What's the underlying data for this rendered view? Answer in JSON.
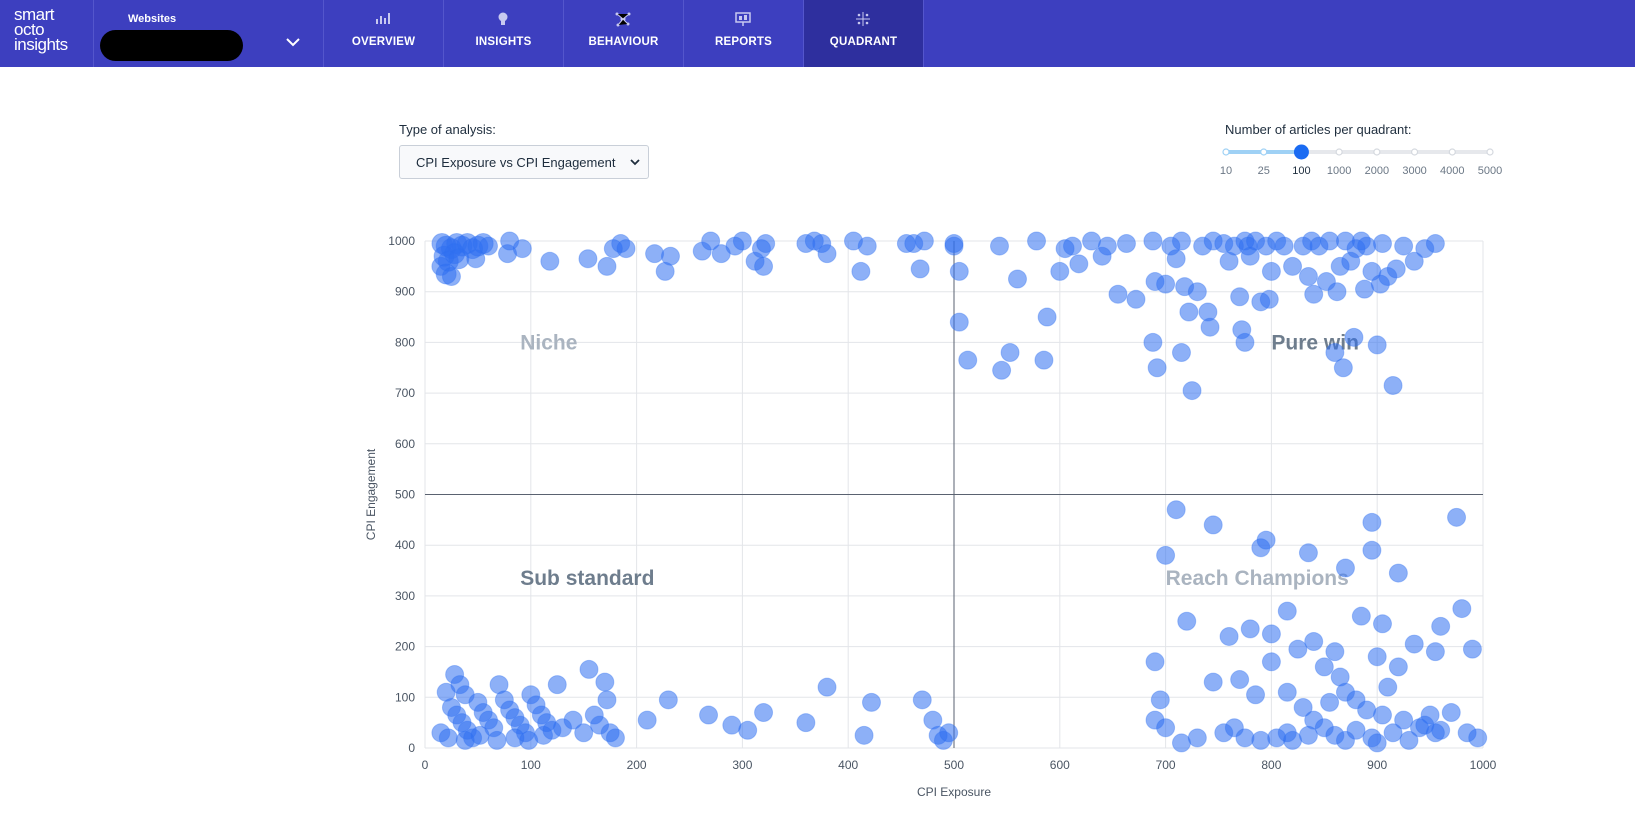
{
  "logo": {
    "line1": "smart",
    "line2": "octo",
    "line3": "insights"
  },
  "header": {
    "websites_label": "Websites",
    "nav": [
      {
        "label": "OVERVIEW",
        "icon": "bar-chart-icon"
      },
      {
        "label": "INSIGHTS",
        "icon": "lightbulb-icon"
      },
      {
        "label": "BEHAVIOUR",
        "icon": "network-icon"
      },
      {
        "label": "REPORTS",
        "icon": "presentation-icon"
      },
      {
        "label": "QUADRANT",
        "icon": "quadrant-icon",
        "active": true
      }
    ]
  },
  "controls": {
    "analysis_label": "Type of analysis:",
    "analysis_value": "CPI Exposure vs CPI Engagement",
    "slider_label": "Number of articles per quadrant:",
    "slider_options": [
      "10",
      "25",
      "100",
      "1000",
      "2000",
      "3000",
      "4000",
      "5000"
    ],
    "slider_selected": "100"
  },
  "colors": {
    "header": "#3d3fbf",
    "header_active": "#2e2f9e",
    "bubble": "#2f6ff0",
    "slider_fill": "#9fd1f5",
    "slider_knob": "#1a6bf2"
  },
  "chart_data": {
    "type": "scatter",
    "xlabel": "CPI Exposure",
    "ylabel": "CPI Engagement",
    "xlim": [
      0,
      1000
    ],
    "ylim": [
      0,
      1000
    ],
    "xticks": [
      "0",
      "100",
      "200",
      "300",
      "400",
      "500",
      "600",
      "700",
      "800",
      "900",
      "1000"
    ],
    "yticks": [
      "0",
      "100",
      "200",
      "300",
      "400",
      "500",
      "600",
      "700",
      "800",
      "900",
      "1000"
    ],
    "grid": true,
    "divider": {
      "x": 500,
      "y": 500
    },
    "quadrant_labels": [
      {
        "text": "Niche",
        "x": 90,
        "y": 800,
        "color": "#aab4c0"
      },
      {
        "text": "Pure win",
        "x": 800,
        "y": 800,
        "color": "#6e7d8d"
      },
      {
        "text": "Sub standard",
        "x": 90,
        "y": 335,
        "color": "#6e7d8d"
      },
      {
        "text": "Reach Champions",
        "x": 700,
        "y": 335,
        "color": "#aab4c0"
      }
    ],
    "points": [
      [
        16,
        995,
        10
      ],
      [
        20,
        990,
        10
      ],
      [
        25,
        985,
        10
      ],
      [
        30,
        995,
        10
      ],
      [
        35,
        990,
        10
      ],
      [
        18,
        970,
        10
      ],
      [
        22,
        960,
        10
      ],
      [
        28,
        975,
        10
      ],
      [
        32,
        965,
        10
      ],
      [
        40,
        995,
        10
      ],
      [
        45,
        985,
        10
      ],
      [
        50,
        990,
        10
      ],
      [
        55,
        995,
        10
      ],
      [
        15,
        950,
        9
      ],
      [
        20,
        935,
        10
      ],
      [
        25,
        930,
        9
      ],
      [
        48,
        965,
        9
      ],
      [
        60,
        990,
        9
      ],
      [
        78,
        975,
        9
      ],
      [
        80,
        1000,
        9
      ],
      [
        92,
        985,
        9
      ],
      [
        118,
        960,
        9
      ],
      [
        154,
        965,
        9
      ],
      [
        172,
        950,
        9
      ],
      [
        178,
        985,
        9
      ],
      [
        185,
        995,
        9
      ],
      [
        190,
        985,
        9
      ],
      [
        217,
        975,
        9
      ],
      [
        227,
        940,
        9
      ],
      [
        232,
        970,
        9
      ],
      [
        262,
        980,
        9
      ],
      [
        270,
        1000,
        9
      ],
      [
        280,
        975,
        9
      ],
      [
        293,
        990,
        9
      ],
      [
        300,
        1000,
        9
      ],
      [
        312,
        960,
        9
      ],
      [
        318,
        985,
        9
      ],
      [
        320,
        950,
        9
      ],
      [
        322,
        995,
        9
      ],
      [
        360,
        995,
        9
      ],
      [
        368,
        1000,
        9
      ],
      [
        375,
        995,
        9
      ],
      [
        380,
        975,
        9
      ],
      [
        405,
        1000,
        9
      ],
      [
        412,
        940,
        9
      ],
      [
        418,
        990,
        9
      ],
      [
        455,
        995,
        9
      ],
      [
        462,
        995,
        9
      ],
      [
        468,
        945,
        9
      ],
      [
        472,
        1000,
        9
      ],
      [
        500,
        990,
        9
      ],
      [
        500,
        995,
        9
      ],
      [
        505,
        940,
        9
      ],
      [
        505,
        840,
        9
      ],
      [
        513,
        765,
        9
      ],
      [
        543,
        990,
        9
      ],
      [
        545,
        745,
        9
      ],
      [
        553,
        780,
        9
      ],
      [
        560,
        925,
        9
      ],
      [
        578,
        1000,
        9
      ],
      [
        585,
        765,
        9
      ],
      [
        588,
        850,
        9
      ],
      [
        600,
        940,
        9
      ],
      [
        605,
        985,
        9
      ],
      [
        612,
        990,
        9
      ],
      [
        618,
        955,
        9
      ],
      [
        630,
        1000,
        9
      ],
      [
        640,
        970,
        9
      ],
      [
        645,
        990,
        9
      ],
      [
        655,
        895,
        9
      ],
      [
        663,
        995,
        9
      ],
      [
        672,
        885,
        9
      ],
      [
        688,
        1000,
        9
      ],
      [
        688,
        800,
        9
      ],
      [
        690,
        920,
        9
      ],
      [
        692,
        750,
        9
      ],
      [
        700,
        915,
        9
      ],
      [
        705,
        990,
        9
      ],
      [
        710,
        965,
        9
      ],
      [
        715,
        1000,
        9
      ],
      [
        715,
        780,
        9
      ],
      [
        718,
        910,
        9
      ],
      [
        722,
        860,
        9
      ],
      [
        725,
        705,
        9
      ],
      [
        730,
        900,
        9
      ],
      [
        735,
        990,
        9
      ],
      [
        740,
        860,
        9
      ],
      [
        742,
        830,
        9
      ],
      [
        745,
        1000,
        9
      ],
      [
        755,
        995,
        9
      ],
      [
        760,
        960,
        9
      ],
      [
        765,
        990,
        9
      ],
      [
        770,
        890,
        9
      ],
      [
        772,
        825,
        9
      ],
      [
        775,
        1000,
        9
      ],
      [
        775,
        800,
        9
      ],
      [
        778,
        990,
        9
      ],
      [
        780,
        970,
        9
      ],
      [
        785,
        1000,
        9
      ],
      [
        790,
        880,
        9
      ],
      [
        795,
        990,
        9
      ],
      [
        798,
        885,
        9
      ],
      [
        800,
        940,
        9
      ],
      [
        805,
        1000,
        9
      ],
      [
        812,
        990,
        9
      ],
      [
        820,
        950,
        9
      ],
      [
        830,
        990,
        9
      ],
      [
        835,
        930,
        9
      ],
      [
        838,
        1000,
        9
      ],
      [
        840,
        895,
        9
      ],
      [
        845,
        990,
        9
      ],
      [
        852,
        920,
        9
      ],
      [
        855,
        1000,
        9
      ],
      [
        860,
        780,
        9
      ],
      [
        862,
        900,
        9
      ],
      [
        865,
        950,
        9
      ],
      [
        868,
        750,
        9
      ],
      [
        870,
        1000,
        9
      ],
      [
        875,
        960,
        9
      ],
      [
        878,
        810,
        9
      ],
      [
        880,
        985,
        9
      ],
      [
        885,
        1000,
        9
      ],
      [
        888,
        905,
        9
      ],
      [
        890,
        990,
        9
      ],
      [
        895,
        940,
        9
      ],
      [
        900,
        795,
        9
      ],
      [
        903,
        915,
        9
      ],
      [
        905,
        995,
        9
      ],
      [
        910,
        930,
        9
      ],
      [
        915,
        715,
        9
      ],
      [
        918,
        945,
        9
      ],
      [
        925,
        990,
        9
      ],
      [
        935,
        960,
        9
      ],
      [
        945,
        985,
        9
      ],
      [
        955,
        995,
        9
      ],
      [
        710,
        470,
        9
      ],
      [
        745,
        440,
        9
      ],
      [
        790,
        395,
        9
      ],
      [
        795,
        410,
        9
      ],
      [
        835,
        385,
        9
      ],
      [
        870,
        355,
        9
      ],
      [
        895,
        390,
        9
      ],
      [
        700,
        380,
        9
      ],
      [
        895,
        445,
        9
      ],
      [
        975,
        455,
        9
      ],
      [
        885,
        260,
        9
      ],
      [
        905,
        245,
        9
      ],
      [
        920,
        345,
        9
      ],
      [
        760,
        220,
        9
      ],
      [
        780,
        235,
        9
      ],
      [
        800,
        225,
        9
      ],
      [
        815,
        270,
        9
      ],
      [
        825,
        195,
        9
      ],
      [
        840,
        210,
        9
      ],
      [
        850,
        160,
        9
      ],
      [
        860,
        190,
        9
      ],
      [
        900,
        180,
        9
      ],
      [
        920,
        160,
        9
      ],
      [
        935,
        205,
        9
      ],
      [
        955,
        190,
        9
      ],
      [
        960,
        240,
        9
      ],
      [
        980,
        275,
        9
      ],
      [
        990,
        195,
        9
      ],
      [
        720,
        250,
        9
      ],
      [
        690,
        170,
        9
      ],
      [
        745,
        130,
        9
      ],
      [
        770,
        135,
        9
      ],
      [
        785,
        105,
        9
      ],
      [
        800,
        170,
        9
      ],
      [
        815,
        110,
        9
      ],
      [
        830,
        80,
        9
      ],
      [
        840,
        55,
        9
      ],
      [
        855,
        90,
        9
      ],
      [
        865,
        140,
        9
      ],
      [
        870,
        110,
        9
      ],
      [
        880,
        95,
        9
      ],
      [
        890,
        75,
        9
      ],
      [
        905,
        65,
        9
      ],
      [
        910,
        120,
        9
      ],
      [
        925,
        55,
        9
      ],
      [
        940,
        40,
        9
      ],
      [
        950,
        65,
        9
      ],
      [
        960,
        35,
        9
      ],
      [
        970,
        70,
        9
      ],
      [
        985,
        30,
        9
      ],
      [
        995,
        20,
        9
      ],
      [
        690,
        55,
        9
      ],
      [
        695,
        95,
        9
      ],
      [
        700,
        40,
        9
      ],
      [
        715,
        10,
        9
      ],
      [
        730,
        20,
        9
      ],
      [
        755,
        30,
        9
      ],
      [
        765,
        40,
        9
      ],
      [
        775,
        20,
        9
      ],
      [
        790,
        15,
        9
      ],
      [
        805,
        20,
        9
      ],
      [
        815,
        30,
        9
      ],
      [
        820,
        15,
        9
      ],
      [
        835,
        25,
        9
      ],
      [
        850,
        40,
        9
      ],
      [
        860,
        25,
        9
      ],
      [
        870,
        15,
        9
      ],
      [
        880,
        35,
        9
      ],
      [
        895,
        20,
        9
      ],
      [
        900,
        10,
        9
      ],
      [
        915,
        30,
        9
      ],
      [
        930,
        15,
        9
      ],
      [
        945,
        45,
        9
      ],
      [
        955,
        30,
        9
      ],
      [
        20,
        110,
        9
      ],
      [
        28,
        145,
        9
      ],
      [
        33,
        125,
        9
      ],
      [
        38,
        105,
        9
      ],
      [
        25,
        80,
        9
      ],
      [
        30,
        65,
        9
      ],
      [
        35,
        50,
        9
      ],
      [
        40,
        35,
        9
      ],
      [
        45,
        20,
        9
      ],
      [
        50,
        90,
        9
      ],
      [
        55,
        70,
        9
      ],
      [
        60,
        55,
        9
      ],
      [
        65,
        40,
        9
      ],
      [
        70,
        125,
        9
      ],
      [
        75,
        95,
        9
      ],
      [
        80,
        75,
        9
      ],
      [
        85,
        60,
        9
      ],
      [
        90,
        45,
        9
      ],
      [
        95,
        30,
        9
      ],
      [
        100,
        105,
        9
      ],
      [
        105,
        85,
        9
      ],
      [
        110,
        65,
        9
      ],
      [
        115,
        50,
        9
      ],
      [
        120,
        35,
        9
      ],
      [
        125,
        125,
        9
      ],
      [
        130,
        40,
        9
      ],
      [
        140,
        55,
        9
      ],
      [
        150,
        30,
        9
      ],
      [
        155,
        155,
        9
      ],
      [
        160,
        65,
        9
      ],
      [
        165,
        45,
        9
      ],
      [
        170,
        130,
        9
      ],
      [
        172,
        95,
        9
      ],
      [
        175,
        30,
        9
      ],
      [
        180,
        20,
        9
      ],
      [
        210,
        55,
        9
      ],
      [
        230,
        95,
        9
      ],
      [
        268,
        65,
        9
      ],
      [
        290,
        45,
        9
      ],
      [
        305,
        35,
        9
      ],
      [
        320,
        70,
        9
      ],
      [
        360,
        50,
        9
      ],
      [
        380,
        120,
        9
      ],
      [
        415,
        25,
        9
      ],
      [
        422,
        90,
        9
      ],
      [
        470,
        95,
        9
      ],
      [
        480,
        55,
        9
      ],
      [
        485,
        25,
        9
      ],
      [
        490,
        15,
        9
      ],
      [
        495,
        30,
        9
      ],
      [
        15,
        30,
        9
      ],
      [
        22,
        20,
        9
      ],
      [
        38,
        15,
        9
      ],
      [
        52,
        25,
        9
      ],
      [
        68,
        15,
        9
      ],
      [
        85,
        20,
        9
      ],
      [
        98,
        15,
        9
      ],
      [
        112,
        25,
        9
      ]
    ]
  }
}
